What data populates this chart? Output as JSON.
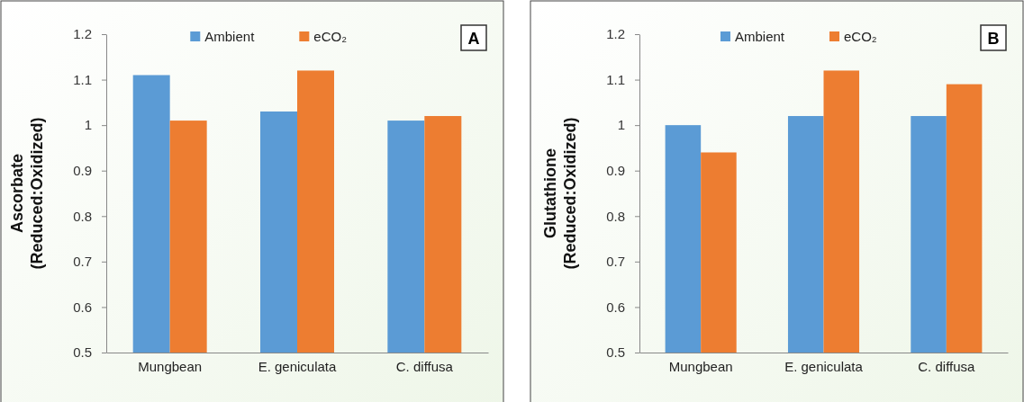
{
  "chart_data": [
    {
      "type": "bar",
      "ylabel": "Ascorbate\n(Reduced:Oxidized)",
      "categories": [
        "Mungbean",
        "E. geniculata",
        "C. diffusa"
      ],
      "series": [
        {
          "name": "Ambient",
          "color": "#5b9bd5",
          "values": [
            1.11,
            1.03,
            1.01
          ]
        },
        {
          "name": "eCO₂",
          "color": "#ed7d31",
          "values": [
            1.01,
            1.12,
            1.02
          ]
        }
      ],
      "ylim": [
        0.5,
        1.2
      ],
      "yticks": [
        0.5,
        0.6,
        0.7,
        0.8,
        0.9,
        1,
        1.1,
        1.2
      ],
      "grid": false,
      "legend": "top",
      "annotations": [
        "A"
      ]
    },
    {
      "type": "bar",
      "ylabel": "Glutathione\n(Reduced:Oxidized)",
      "categories": [
        "Mungbean",
        "E. geniculata",
        "C. diffusa"
      ],
      "series": [
        {
          "name": "Ambient",
          "color": "#5b9bd5",
          "values": [
            1.0,
            1.02,
            1.02
          ]
        },
        {
          "name": "eCO₂",
          "color": "#ed7d31",
          "values": [
            0.94,
            1.12,
            1.09
          ]
        }
      ],
      "ylim": [
        0.5,
        1.2
      ],
      "yticks": [
        0.5,
        0.6,
        0.7,
        0.8,
        0.9,
        1,
        1.1,
        1.2
      ],
      "grid": false,
      "legend": "top",
      "annotations": [
        "B"
      ]
    }
  ]
}
